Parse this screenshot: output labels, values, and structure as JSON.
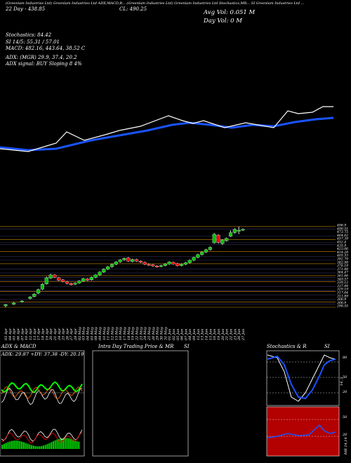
{
  "header": {
    "chart_title": "(Greenlam Industries Ltd) Greenlam Industries Ltd ADX,MACD,B... (Greenlam Industries Ltd) Greenlam Industries Ltd Stochastics,MR... SI Greenlam Industries Ltd ...",
    "left_line": "22 Day - 438.85",
    "cl_line": "CL: 490.25",
    "avg_vol": "Avg Vol: 0.051 M",
    "day_vol": "Day Vol: 0  M"
  },
  "indicators": {
    "stoch": "Stochastics: 84.42",
    "si": "SI 14/5: 55.31 / 57.01",
    "macd": "MACD: 482.16, 443.64, 38.52  C",
    "adx": "ADX:                          (MGR) 29.9,  37.4,  20.2",
    "adx_signal": "ADX  signal:                  BUY Sloping 8 4%"
  },
  "price_labels": [
    "496.9",
    "490.51",
    "473.75",
    "464.62",
    "457.39",
    "452.4",
    "435.9",
    "423.06",
    "414.28",
    "405.53",
    "392.79",
    "382.98",
    "376.19",
    "371.88",
    "364.47",
    "361.66",
    "349.57",
    "339.12",
    "337.44",
    "329.19",
    "317.64",
    "311.89",
    "306.9",
    "306.9",
    "298.55"
  ],
  "dates": [
    "03 Apr",
    "04 Apr",
    "05 Apr",
    "06 Apr",
    "07 Apr",
    "10 Apr",
    "12 Apr",
    "13 Apr",
    "17 Apr",
    "18 Apr",
    "19 Apr",
    "20 Apr",
    "21 Apr",
    "24 Apr",
    "25 Apr",
    "26 Apr",
    "27 Apr",
    "28 Apr",
    "02 May",
    "03 May",
    "04 May",
    "05 May",
    "08 May",
    "09 May",
    "10 May",
    "11 May",
    "12 May",
    "15 May",
    "16 May",
    "17 May",
    "18 May",
    "19 May",
    "22 May",
    "23 May",
    "24 May",
    "25 May",
    "26 May",
    "29 May",
    "30 May",
    "31 May",
    "01 Jun",
    "02 Jun",
    "05 Jun",
    "06 Jun",
    "07 Jun",
    "08 Jun",
    "09 Jun",
    "12 Jun",
    "13 Jun",
    "14 Jun",
    "15 Jun",
    "16 Jun",
    "19 Jun",
    "20 Jun",
    "21 Jun",
    "22 Jun",
    "23 Jun",
    "26 Jun",
    "27 Jun"
  ],
  "panels": {
    "adx_title": "ADX  & MACD",
    "adx_values": "ADX: 29.87  +DY: 37.38  -DY: 20.19",
    "intra_title": "Intra  Day Trading Price  & MR",
    "intra_si": "SI",
    "stoch_title": "Stochastics & R",
    "stoch_si": "SI",
    "stoch_ticks": [
      "80",
      "50",
      "20"
    ],
    "si_ticks": [
      "50",
      "20"
    ],
    "stoch_axis": "14, 3",
    "si_axis": "MR 14,14"
  },
  "colors": {
    "up": "#00c000",
    "down": "#ff0000",
    "ma_long": "#1a53ff",
    "price": "#ffffff",
    "guide": "#cc8800",
    "si_bg": "#b30000"
  },
  "chart_data": {
    "type": "candlestick",
    "ylabel": "",
    "ylim": [
      298.55,
      502
    ],
    "candles": [
      {
        "d": "03 Apr",
        "o": 302,
        "c": 305,
        "h": 307,
        "l": 298.55
      },
      {
        "d": "05 Apr",
        "o": 306,
        "c": 309,
        "h": 311,
        "l": 304
      },
      {
        "d": "07 Apr",
        "o": 312,
        "c": 314,
        "h": 316,
        "l": 310
      },
      {
        "d": "12 Apr",
        "o": 320,
        "c": 324,
        "h": 326,
        "l": 318
      },
      {
        "d": "13 Apr",
        "o": 325,
        "c": 331,
        "h": 333,
        "l": 323
      },
      {
        "d": "17 Apr",
        "o": 333,
        "c": 342,
        "h": 344,
        "l": 331
      },
      {
        "d": "18 Apr",
        "o": 343,
        "c": 355,
        "h": 358,
        "l": 341
      },
      {
        "d": "19 Apr",
        "o": 356,
        "c": 371,
        "h": 374,
        "l": 354
      },
      {
        "d": "20 Apr",
        "o": 370,
        "c": 378,
        "h": 381,
        "l": 368
      },
      {
        "d": "21 Apr",
        "o": 378,
        "c": 372,
        "h": 380,
        "l": 370
      },
      {
        "d": "24 Apr",
        "o": 371,
        "c": 365,
        "h": 373,
        "l": 363
      },
      {
        "d": "25 Apr",
        "o": 366,
        "c": 362,
        "h": 368,
        "l": 360
      },
      {
        "d": "26 Apr",
        "o": 361,
        "c": 357,
        "h": 363,
        "l": 355
      },
      {
        "d": "27 Apr",
        "o": 357,
        "c": 354,
        "h": 359,
        "l": 352
      },
      {
        "d": "28 Apr",
        "o": 355,
        "c": 358,
        "h": 360,
        "l": 353
      },
      {
        "d": "02 May",
        "o": 358,
        "c": 363,
        "h": 365,
        "l": 356
      },
      {
        "d": "03 May",
        "o": 363,
        "c": 369,
        "h": 371,
        "l": 361
      },
      {
        "d": "04 May",
        "o": 368,
        "c": 365,
        "h": 370,
        "l": 363
      },
      {
        "d": "05 May",
        "o": 366,
        "c": 372,
        "h": 374,
        "l": 364
      },
      {
        "d": "08 May",
        "o": 372,
        "c": 378,
        "h": 380,
        "l": 370
      },
      {
        "d": "09 May",
        "o": 378,
        "c": 385,
        "h": 387,
        "l": 376
      },
      {
        "d": "10 May",
        "o": 385,
        "c": 392,
        "h": 394,
        "l": 383
      },
      {
        "d": "11 May",
        "o": 392,
        "c": 398,
        "h": 400,
        "l": 390
      },
      {
        "d": "12 May",
        "o": 398,
        "c": 404,
        "h": 406,
        "l": 396
      },
      {
        "d": "15 May",
        "o": 404,
        "c": 410,
        "h": 412,
        "l": 402
      },
      {
        "d": "16 May",
        "o": 410,
        "c": 415,
        "h": 417,
        "l": 408
      },
      {
        "d": "17 May",
        "o": 415,
        "c": 419,
        "h": 421,
        "l": 413
      },
      {
        "d": "18 May",
        "o": 420,
        "c": 412,
        "h": 422,
        "l": 410
      },
      {
        "d": "19 May",
        "o": 411,
        "c": 416,
        "h": 418,
        "l": 409
      },
      {
        "d": "22 May",
        "o": 416,
        "c": 412,
        "h": 418,
        "l": 410
      },
      {
        "d": "23 May",
        "o": 412,
        "c": 409,
        "h": 414,
        "l": 407
      },
      {
        "d": "24 May",
        "o": 409,
        "c": 404,
        "h": 411,
        "l": 402
      },
      {
        "d": "25 May",
        "o": 404,
        "c": 402,
        "h": 406,
        "l": 400
      },
      {
        "d": "26 May",
        "o": 403,
        "c": 400,
        "h": 405,
        "l": 398
      },
      {
        "d": "29 May",
        "o": 400,
        "c": 398,
        "h": 402,
        "l": 396
      },
      {
        "d": "30 May",
        "o": 399,
        "c": 401,
        "h": 403,
        "l": 397
      },
      {
        "d": "31 May",
        "o": 401,
        "c": 405,
        "h": 407,
        "l": 399
      },
      {
        "d": "01 Jun",
        "o": 405,
        "c": 410,
        "h": 412,
        "l": 403
      },
      {
        "d": "02 Jun",
        "o": 409,
        "c": 405,
        "h": 411,
        "l": 403
      },
      {
        "d": "05 Jun",
        "o": 406,
        "c": 401,
        "h": 408,
        "l": 399
      },
      {
        "d": "06 Jun",
        "o": 401,
        "c": 404,
        "h": 406,
        "l": 399
      },
      {
        "d": "07 Jun",
        "o": 404,
        "c": 408,
        "h": 410,
        "l": 402
      },
      {
        "d": "08 Jun",
        "o": 408,
        "c": 414,
        "h": 416,
        "l": 406
      },
      {
        "d": "09 Jun",
        "o": 414,
        "c": 421,
        "h": 423,
        "l": 412
      },
      {
        "d": "12 Jun",
        "o": 421,
        "c": 428,
        "h": 430,
        "l": 419
      },
      {
        "d": "13 Jun",
        "o": 428,
        "c": 434,
        "h": 436,
        "l": 426
      },
      {
        "d": "14 Jun",
        "o": 434,
        "c": 440,
        "h": 442,
        "l": 432
      },
      {
        "d": "15 Jun",
        "o": 440,
        "c": 446,
        "h": 448,
        "l": 438
      },
      {
        "d": "16 Jun",
        "o": 457,
        "c": 478,
        "h": 481,
        "l": 455
      },
      {
        "d": "19 Jun",
        "o": 476,
        "c": 458,
        "h": 478,
        "l": 455
      },
      {
        "d": "20 Jun",
        "o": 455,
        "c": 464,
        "h": 466,
        "l": 452
      },
      {
        "d": "21 Jun",
        "o": 462,
        "c": 468,
        "h": 470,
        "l": 460
      },
      {
        "d": "22 Jun",
        "o": 473,
        "c": 482,
        "h": 488,
        "l": 471
      },
      {
        "d": "23 Jun",
        "o": 482,
        "c": 490,
        "h": 493,
        "l": 479
      },
      {
        "d": "26 Jun",
        "o": 486,
        "c": 488,
        "h": 496.9,
        "l": 478
      },
      {
        "d": "27 Jun",
        "o": 490,
        "c": 490.25,
        "h": 492,
        "l": 486
      }
    ]
  }
}
